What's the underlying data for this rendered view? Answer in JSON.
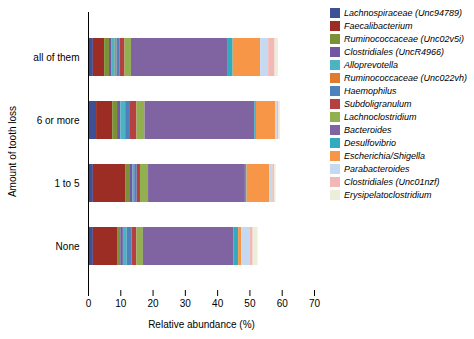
{
  "chart_data": {
    "type": "bar",
    "orientation": "horizontal",
    "stacked": true,
    "xlabel": "Relative abundance (%)",
    "ylabel": "Amount of tooth loss",
    "categories": [
      "None",
      "1 to 5",
      "6 or more",
      "all of them"
    ],
    "series": [
      {
        "name": "Lachnospiraceae (Unc94789)",
        "color": "#3D5096",
        "values": [
          1.5,
          1.5,
          2.5,
          1.5
        ]
      },
      {
        "name": "Faecalibacterium",
        "color": "#9B2D24",
        "values": [
          7.5,
          10.0,
          5.0,
          3.5
        ]
      },
      {
        "name": "Ruminococcaceae (Unc02v5i)",
        "color": "#7A9136",
        "values": [
          1.0,
          1.5,
          1.5,
          1.5
        ]
      },
      {
        "name": "Clostridiales (UncR4966)",
        "color": "#7158A0",
        "values": [
          0.8,
          0.8,
          1.0,
          0.8
        ]
      },
      {
        "name": "Alloprevotella",
        "color": "#4DB3C3",
        "values": [
          1.2,
          0.5,
          1.5,
          1.0
        ]
      },
      {
        "name": "Ruminococcaceae (Unc022vh)",
        "color": "#E07C30",
        "values": [
          0.0,
          0.0,
          0.0,
          0.5
        ]
      },
      {
        "name": "Haemophilus",
        "color": "#4F81BD",
        "values": [
          1.5,
          0.8,
          1.5,
          1.0
        ]
      },
      {
        "name": "Subdoligranulum",
        "color": "#B54040",
        "values": [
          1.5,
          1.0,
          2.0,
          1.5
        ]
      },
      {
        "name": "Lachnoclostridium",
        "color": "#92B050",
        "values": [
          2.0,
          2.5,
          2.5,
          2.0
        ]
      },
      {
        "name": "Bacteroides",
        "color": "#8064A2",
        "values": [
          28.0,
          30.0,
          34.0,
          30.0
        ]
      },
      {
        "name": "Desulfovibrio",
        "color": "#31ABBE",
        "values": [
          1.5,
          0.5,
          0.5,
          1.5
        ]
      },
      {
        "name": "Escherichia/Shigella",
        "color": "#F79646",
        "values": [
          1.0,
          7.0,
          6.0,
          8.5
        ]
      },
      {
        "name": "Parabacteroides",
        "color": "#C5D9F1",
        "values": [
          2.5,
          1.0,
          0.5,
          2.5
        ]
      },
      {
        "name": "Clostridiales (Unc01nzf)",
        "color": "#F2B8B5",
        "values": [
          1.0,
          0.5,
          0.5,
          2.0
        ]
      },
      {
        "name": "Erysipelatoclostridium",
        "color": "#EBEED9",
        "values": [
          1.5,
          0.5,
          0.5,
          1.0
        ]
      }
    ],
    "xlim": [
      0,
      70
    ],
    "xticks": [
      0,
      10,
      20,
      30,
      40,
      50,
      60,
      70
    ],
    "grid": false,
    "legend": "right"
  }
}
